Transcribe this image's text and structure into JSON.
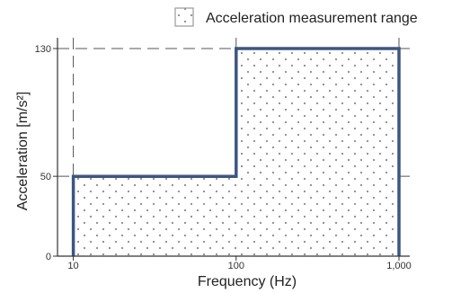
{
  "chart_data": {
    "type": "area",
    "xlabel": "Frequency (Hz)",
    "ylabel": "Acceleration [m/s²]",
    "x_scale": "log",
    "xlim": [
      8,
      1000
    ],
    "ylim": [
      0,
      130
    ],
    "x_ticks": [
      {
        "value": 10,
        "label": "10"
      },
      {
        "value": 100,
        "label": "100"
      },
      {
        "value": 1000,
        "label": "1,000"
      }
    ],
    "y_ticks": [
      {
        "value": 0,
        "label": "0"
      },
      {
        "value": 50,
        "label": "50"
      },
      {
        "value": 130,
        "label": "130"
      }
    ],
    "grid": "dashed at tick values",
    "legend": {
      "placement": "top-right",
      "label": "Acceleration measurement range"
    },
    "series": [
      {
        "name": "Acceleration measurement range",
        "points": [
          {
            "x": 10,
            "y": 0
          },
          {
            "x": 10,
            "y": 50
          },
          {
            "x": 100,
            "y": 50
          },
          {
            "x": 100,
            "y": 130
          },
          {
            "x": 1000,
            "y": 130
          },
          {
            "x": 1000,
            "y": 0
          }
        ]
      }
    ],
    "colors": {
      "outline": "#3d5680",
      "fill_dots": "#8a8a8a",
      "grid": "#555555",
      "axis": "#333333"
    }
  }
}
